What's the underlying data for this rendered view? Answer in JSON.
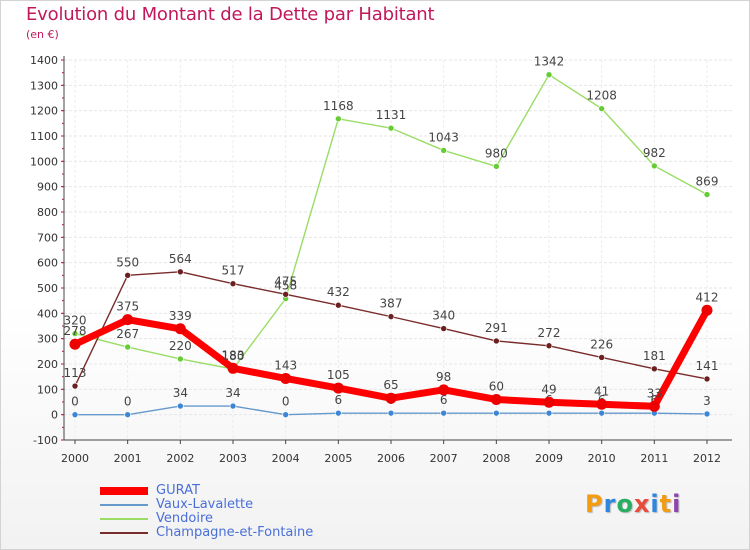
{
  "page": {
    "title": "Evolution du Montant de la Dette par Habitant",
    "unit": "(en €)"
  },
  "logo": {
    "text": "Proxiti",
    "letters": [
      {
        "ch": "P",
        "color": "#f39c12"
      },
      {
        "ch": "r",
        "color": "#2e86de"
      },
      {
        "ch": "o",
        "color": "#27ae60"
      },
      {
        "ch": "x",
        "color": "#e74c3c"
      },
      {
        "ch": "i",
        "color": "#2e86de"
      },
      {
        "ch": "t",
        "color": "#f39c12"
      },
      {
        "ch": "i",
        "color": "#8e44ad"
      }
    ]
  },
  "chart_data": {
    "type": "line",
    "title": "Evolution du Montant de la Dette par Habitant",
    "subtitle": "(en €)",
    "xlabel": "",
    "ylabel": "",
    "x": [
      "2000",
      "2001",
      "2002",
      "2003",
      "2004",
      "2005",
      "2006",
      "2007",
      "2008",
      "2009",
      "2010",
      "2011",
      "2012"
    ],
    "ylim": [
      -100,
      1400
    ],
    "yticks": [
      -100,
      0,
      100,
      200,
      300,
      400,
      500,
      600,
      700,
      800,
      900,
      1000,
      1100,
      1200,
      1300,
      1400
    ],
    "grid": true,
    "legend": "bottom-left",
    "series": [
      {
        "name": "Vendoire",
        "color": "#99dd66",
        "marker": "#66cc33",
        "width": 1.4,
        "values": [
          320,
          267,
          220,
          180,
          458,
          1168,
          1131,
          1043,
          980,
          1342,
          1208,
          982,
          869
        ]
      },
      {
        "name": "Champagne-et-Fontaine",
        "color": "#7a2c2c",
        "marker": "#6b1f1f",
        "width": 1.4,
        "values": [
          113,
          550,
          564,
          517,
          475,
          432,
          387,
          340,
          291,
          272,
          226,
          181,
          141
        ]
      },
      {
        "name": "Vaux-Lavalette",
        "color": "#6699cc",
        "marker": "#3d86d6",
        "width": 1.4,
        "values": [
          0,
          0,
          34,
          34,
          0,
          6,
          6,
          6,
          6,
          6,
          6,
          6,
          3
        ]
      },
      {
        "name": "GURAT",
        "color": "#ff0000",
        "marker": "#ee0000",
        "width": 7,
        "values": [
          278,
          375,
          339,
          183,
          143,
          105,
          65,
          98,
          60,
          49,
          41,
          33,
          412
        ]
      }
    ],
    "legend_order": [
      "GURAT",
      "Vaux-Lavalette",
      "Vendoire",
      "Champagne-et-Fontaine"
    ]
  }
}
